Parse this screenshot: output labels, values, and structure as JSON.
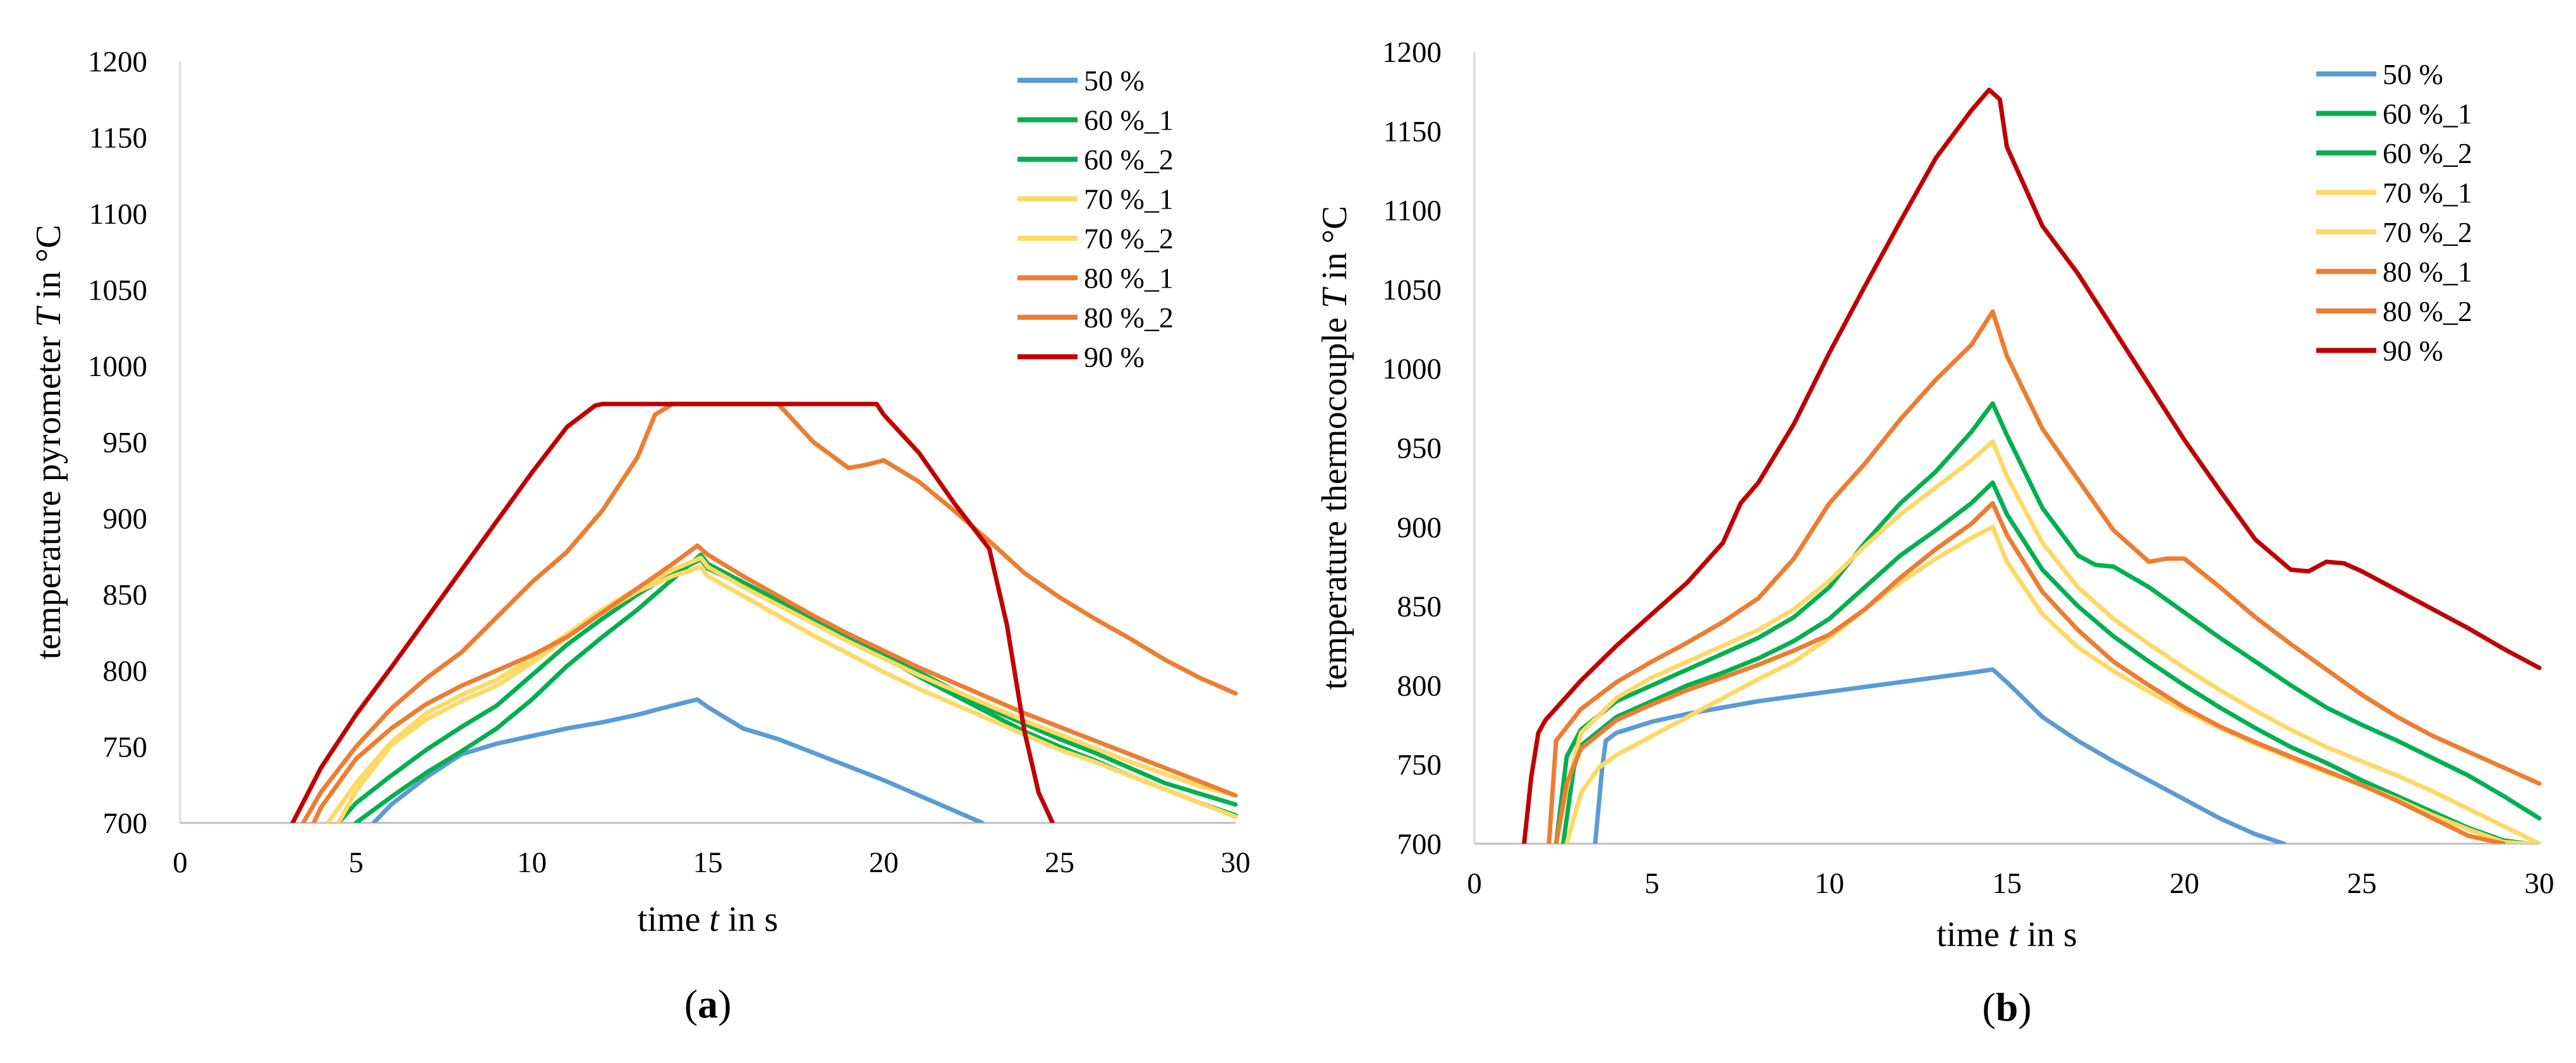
{
  "figure": {
    "panels": [
      {
        "id": "a",
        "label_open": "(",
        "label_letter": "a",
        "label_close": ")"
      },
      {
        "id": "b",
        "label_open": "(",
        "label_letter": "b",
        "label_close": ")"
      }
    ]
  },
  "chart_data": [
    {
      "type": "line",
      "panel": "a",
      "title": "",
      "xlabel": {
        "pre": "time ",
        "var": "t",
        "post": " in s"
      },
      "ylabel": {
        "pre": "temperature pyrometer ",
        "var": "T",
        "post": " in °C"
      },
      "xlim": [
        0,
        30
      ],
      "ylim": [
        700,
        1200
      ],
      "xticks": [
        0,
        5,
        10,
        15,
        20,
        25,
        30
      ],
      "yticks": [
        700,
        750,
        800,
        850,
        900,
        950,
        1000,
        1050,
        1100,
        1150,
        1200
      ],
      "grid": false,
      "legend_position": "top-right",
      "series": [
        {
          "name": "50 %",
          "color": "#5b9bd5",
          "x": [
            5.5,
            6,
            7,
            8,
            9,
            10,
            11,
            12,
            13,
            14,
            14.7,
            15,
            16,
            17,
            18,
            19,
            20,
            21,
            22,
            22.8
          ],
          "y": [
            700,
            712,
            730,
            745,
            752,
            757,
            762,
            766,
            771,
            777,
            781,
            776,
            762,
            755,
            746,
            737,
            728,
            718,
            708,
            700
          ]
        },
        {
          "name": "60 %_1",
          "color": "#00b050",
          "x": [
            5,
            6,
            7,
            8,
            9,
            10,
            11,
            12,
            13,
            14,
            14.8,
            15,
            16,
            17,
            18,
            19,
            20,
            21,
            22,
            23,
            24,
            25,
            26,
            27,
            28,
            29,
            30
          ],
          "y": [
            700,
            717,
            733,
            747,
            762,
            781,
            803,
            822,
            840,
            860,
            876,
            870,
            858,
            846,
            834,
            822,
            811,
            799,
            787,
            775,
            765,
            755,
            746,
            736,
            726,
            719,
            712
          ]
        },
        {
          "name": "60 %_2",
          "color": "#00b050",
          "x": [
            4.5,
            5,
            6,
            7,
            8,
            9,
            10,
            11,
            12,
            13,
            14,
            14.8,
            15,
            16,
            17,
            18,
            19,
            20,
            21,
            22,
            23,
            24,
            25,
            26,
            27,
            28,
            29,
            30
          ],
          "y": [
            700,
            713,
            731,
            748,
            763,
            777,
            797,
            817,
            834,
            850,
            864,
            873,
            867,
            856,
            846,
            834,
            822,
            809,
            796,
            784,
            772,
            760,
            750,
            741,
            731,
            722,
            713,
            705
          ]
        },
        {
          "name": "70 %_1",
          "color": "#ffd966",
          "x": [
            4.5,
            5,
            6,
            7,
            8,
            9,
            10,
            11,
            12,
            13,
            14,
            14.8,
            15,
            16,
            17,
            18,
            19,
            20,
            21,
            22,
            23,
            24,
            25,
            26,
            27,
            28,
            29,
            30
          ],
          "y": [
            700,
            721,
            751,
            768,
            780,
            790,
            805,
            822,
            838,
            852,
            862,
            868,
            862,
            849,
            836,
            823,
            811,
            799,
            788,
            778,
            768,
            758,
            748,
            740,
            731,
            722,
            713,
            704
          ]
        },
        {
          "name": "70 %_2",
          "color": "#ffd966",
          "x": [
            4.2,
            5,
            6,
            7,
            8,
            9,
            10,
            11,
            12,
            13,
            14,
            14.8,
            15,
            16,
            17,
            18,
            19,
            20,
            21,
            22,
            23,
            24,
            25,
            26,
            27,
            28,
            29,
            30
          ],
          "y": [
            700,
            726,
            753,
            772,
            784,
            794,
            808,
            824,
            840,
            854,
            866,
            874,
            868,
            855,
            843,
            831,
            819,
            808,
            797,
            787,
            777,
            767,
            758,
            749,
            740,
            732,
            724,
            718
          ]
        },
        {
          "name": "80 %_1",
          "color": "#ed7d31",
          "x": [
            3.8,
            4,
            5,
            6,
            7,
            8,
            9,
            10,
            11,
            12,
            13,
            14,
            14.7,
            15,
            16,
            17,
            18,
            19,
            20,
            21,
            22,
            23,
            24,
            25,
            26,
            27,
            28,
            29,
            30
          ],
          "y": [
            700,
            710,
            742,
            762,
            778,
            790,
            800,
            810,
            822,
            838,
            854,
            870,
            882,
            876,
            862,
            849,
            836,
            824,
            813,
            802,
            792,
            782,
            772,
            763,
            754,
            745,
            736,
            727,
            718
          ]
        },
        {
          "name": "80 %_2",
          "color": "#ed7d31",
          "x": [
            3.5,
            4,
            5,
            6,
            7,
            8,
            9,
            10,
            11,
            12,
            13,
            13.5,
            14,
            14.5,
            15,
            16,
            17,
            18,
            19,
            19.5,
            20,
            21,
            22,
            23,
            24,
            25,
            26,
            27,
            28,
            29,
            30
          ],
          "y": [
            700,
            720,
            750,
            775,
            795,
            812,
            835,
            858,
            878,
            905,
            940,
            968,
            975,
            975,
            975,
            975,
            975,
            950,
            933,
            935,
            938,
            924,
            905,
            885,
            864,
            848,
            834,
            821,
            807,
            795,
            785
          ]
        },
        {
          "name": "90 %",
          "color": "#c00000",
          "x": [
            3.2,
            4,
            5,
            6,
            7,
            8,
            9,
            10,
            11,
            11.8,
            12,
            13,
            14,
            15,
            16,
            17,
            18,
            19,
            19.8,
            20,
            21,
            22,
            23,
            23.5,
            24,
            24.4,
            24.8
          ],
          "y": [
            700,
            736,
            771,
            802,
            834,
            866,
            898,
            930,
            960,
            974,
            975,
            975,
            975,
            975,
            975,
            975,
            975,
            975,
            975,
            968,
            943,
            910,
            880,
            830,
            760,
            720,
            700
          ]
        }
      ]
    },
    {
      "type": "line",
      "panel": "b",
      "title": "",
      "xlabel": {
        "pre": "time ",
        "var": "t",
        "post": " in s"
      },
      "ylabel": {
        "pre": "temperature thermocouple ",
        "var": "T",
        "post": " in °C"
      },
      "xlim": [
        0,
        30
      ],
      "ylim": [
        700,
        1200
      ],
      "xticks": [
        0,
        5,
        10,
        15,
        20,
        25,
        30
      ],
      "yticks": [
        700,
        750,
        800,
        850,
        900,
        950,
        1000,
        1050,
        1100,
        1150,
        1200
      ],
      "grid": false,
      "legend_position": "top-right",
      "series": [
        {
          "name": "50 %",
          "color": "#5b9bd5",
          "x": [
            3.4,
            3.6,
            3.7,
            4,
            5,
            6,
            7,
            8,
            9,
            10,
            11,
            12,
            13,
            14,
            14.6,
            15,
            16,
            17,
            18,
            19,
            20,
            21,
            22,
            22.8
          ],
          "y": [
            700,
            748,
            765,
            770,
            777,
            782,
            786,
            790,
            793,
            796,
            799,
            802,
            805,
            808,
            810,
            802,
            780,
            765,
            752,
            740,
            728,
            716,
            706,
            700
          ]
        },
        {
          "name": "60 %_1",
          "color": "#00b050",
          "x": [
            2.3,
            2.6,
            3,
            4,
            5,
            6,
            7,
            8,
            9,
            10,
            11,
            12,
            13,
            14,
            14.6,
            15,
            16,
            17,
            17.5,
            18,
            19,
            20,
            21,
            22,
            23,
            24,
            25,
            26,
            27,
            28,
            29,
            30
          ],
          "y": [
            700,
            755,
            772,
            790,
            800,
            810,
            820,
            830,
            843,
            862,
            890,
            915,
            935,
            960,
            978,
            958,
            912,
            882,
            876,
            875,
            862,
            846,
            830,
            815,
            800,
            786,
            775,
            765,
            754,
            743,
            730,
            716
          ]
        },
        {
          "name": "60 %_2",
          "color": "#00b050",
          "x": [
            2.5,
            2.8,
            3,
            4,
            5,
            6,
            7,
            8,
            9,
            10,
            11,
            12,
            13,
            14,
            14.6,
            15,
            16,
            17,
            18,
            19,
            20,
            21,
            22,
            23,
            24,
            25,
            26,
            27,
            28,
            29,
            29.7
          ],
          "y": [
            700,
            748,
            762,
            780,
            790,
            800,
            808,
            817,
            828,
            842,
            862,
            882,
            898,
            915,
            928,
            908,
            873,
            850,
            831,
            815,
            800,
            786,
            773,
            761,
            751,
            740,
            730,
            720,
            710,
            702,
            700
          ]
        },
        {
          "name": "70 %_1",
          "color": "#ffd966",
          "x": [
            2.3,
            2.6,
            3,
            4,
            5,
            6,
            7,
            8,
            9,
            10,
            11,
            12,
            13,
            14,
            14.6,
            15,
            16,
            17,
            18,
            19,
            20,
            21,
            22,
            23,
            24,
            25,
            26,
            27,
            28,
            29,
            30
          ],
          "y": [
            700,
            735,
            770,
            792,
            805,
            815,
            825,
            835,
            848,
            866,
            888,
            908,
            925,
            942,
            954,
            932,
            890,
            862,
            842,
            826,
            811,
            797,
            784,
            772,
            761,
            752,
            743,
            733,
            722,
            711,
            700
          ]
        },
        {
          "name": "70 %_2",
          "color": "#ffd966",
          "x": [
            2.6,
            3,
            3.5,
            4,
            5,
            6,
            7,
            8,
            9,
            10,
            11,
            12,
            13,
            14,
            14.6,
            15,
            16,
            17,
            18,
            19,
            20,
            21,
            22,
            23,
            24,
            25,
            26,
            27,
            28,
            29,
            29.7
          ],
          "y": [
            700,
            732,
            748,
            756,
            768,
            780,
            792,
            804,
            815,
            830,
            848,
            865,
            880,
            893,
            900,
            878,
            845,
            824,
            809,
            796,
            784,
            773,
            763,
            754,
            745,
            737,
            728,
            718,
            709,
            701,
            700
          ]
        },
        {
          "name": "80 %_1",
          "color": "#ed7d31",
          "x": [
            2.3,
            2.6,
            3,
            4,
            5,
            6,
            7,
            8,
            9,
            10,
            11,
            12,
            13,
            14,
            14.6,
            15,
            16,
            17,
            18,
            19,
            20,
            21,
            22,
            23,
            24,
            25,
            26,
            27,
            28,
            29
          ],
          "y": [
            700,
            738,
            760,
            778,
            788,
            797,
            805,
            813,
            822,
            832,
            848,
            868,
            886,
            902,
            915,
            895,
            859,
            835,
            815,
            800,
            786,
            774,
            764,
            755,
            746,
            737,
            727,
            716,
            705,
            700
          ]
        },
        {
          "name": "80 %_2",
          "color": "#ed7d31",
          "x": [
            2.1,
            2.3,
            3,
            4,
            5,
            6,
            7,
            8,
            9,
            10,
            11,
            12,
            13,
            14,
            14.6,
            15,
            16,
            17,
            18,
            19,
            19.5,
            20,
            21,
            22,
            23,
            24,
            25,
            26,
            27,
            28,
            29,
            30
          ],
          "y": [
            700,
            765,
            785,
            802,
            815,
            827,
            840,
            855,
            880,
            915,
            940,
            968,
            993,
            1015,
            1036,
            1008,
            962,
            930,
            898,
            878,
            880,
            880,
            862,
            843,
            826,
            810,
            794,
            780,
            768,
            758,
            748,
            738
          ]
        },
        {
          "name": "90 %",
          "color": "#c00000",
          "x": [
            1.4,
            1.6,
            1.8,
            2,
            3,
            4,
            5,
            6,
            7,
            7.5,
            8,
            9,
            10,
            11,
            12,
            13,
            14,
            14.5,
            14.8,
            15,
            16,
            17,
            18,
            19,
            20,
            21,
            22,
            23,
            23.5,
            24,
            24.5,
            25,
            26,
            27,
            28,
            29,
            30
          ],
          "y": [
            700,
            742,
            770,
            778,
            803,
            825,
            845,
            865,
            890,
            915,
            928,
            965,
            1010,
            1052,
            1093,
            1133,
            1163,
            1176,
            1170,
            1140,
            1090,
            1060,
            1025,
            990,
            955,
            923,
            892,
            873,
            872,
            878,
            877,
            872,
            860,
            848,
            836,
            823,
            811
          ]
        }
      ]
    }
  ]
}
